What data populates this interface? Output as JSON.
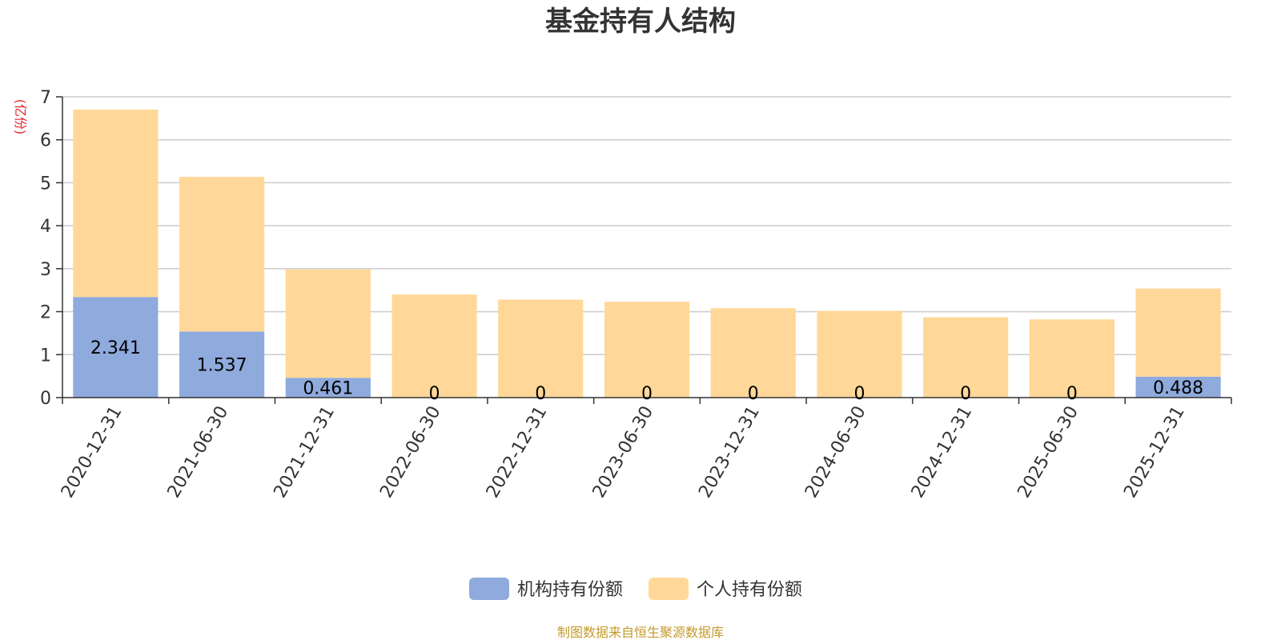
{
  "colors": {
    "institution": "#8faadc",
    "individual": "#ffd899",
    "unit": "#e8262c",
    "source": "#c49a2c",
    "grid": "#cccccc",
    "axis": "#333333"
  },
  "source_text": "制图数据来自恒生聚源数据库",
  "chart_data": {
    "type": "bar",
    "stacked": true,
    "title": "基金持有人结构",
    "ylabel": "(亿份)",
    "ylim": [
      0,
      7
    ],
    "yticks": [
      0,
      1,
      2,
      3,
      4,
      5,
      6,
      7
    ],
    "grid": true,
    "legend": "bottom",
    "categories": [
      "2020-12-31",
      "2021-06-30",
      "2021-12-31",
      "2022-06-30",
      "2022-12-31",
      "2023-06-30",
      "2023-12-31",
      "2024-06-30",
      "2024-12-31",
      "2025-06-30",
      "2025-12-31"
    ],
    "series": [
      {
        "name": "机构持有份额",
        "values": [
          2.341,
          1.537,
          0.461,
          0,
          0,
          0,
          0,
          0,
          0,
          0,
          0.488
        ],
        "labels": [
          "2.341",
          "1.537",
          "0.461",
          "0",
          "0",
          "0",
          "0",
          "0",
          "0",
          "0",
          "0.488"
        ]
      },
      {
        "name": "个人持有份额",
        "values": [
          4.36,
          3.6,
          2.52,
          2.4,
          2.28,
          2.23,
          2.08,
          2.02,
          1.87,
          1.82,
          2.05
        ]
      }
    ]
  }
}
